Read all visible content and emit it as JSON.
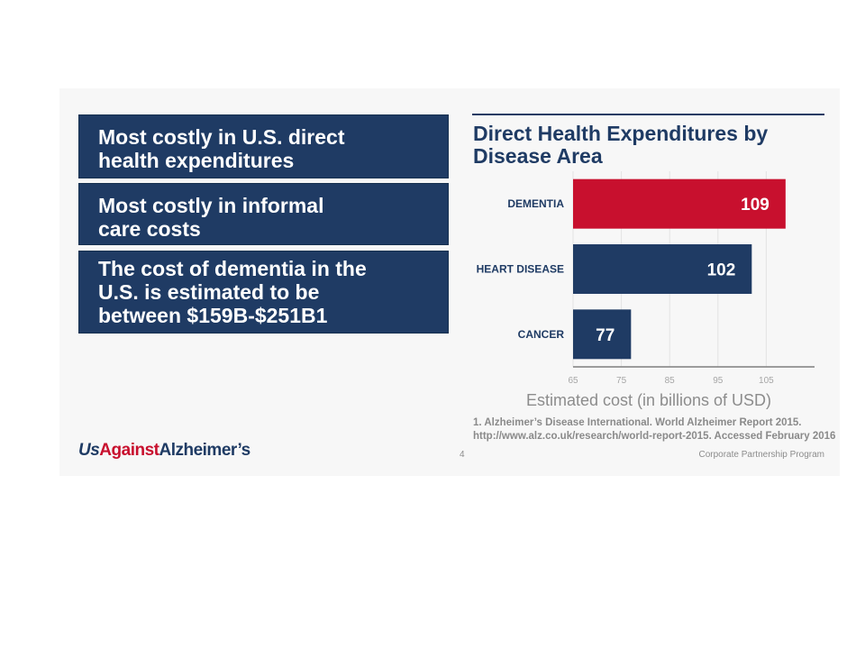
{
  "boxes": [
    {
      "text": "Most costly in U.S. direct\nhealth expenditures"
    },
    {
      "text": "Most costly in informal\ncare costs"
    },
    {
      "text": "The cost of dementia in the\nU.S. is estimated to be\nbetween $159B-$251B1"
    }
  ],
  "chart_data": {
    "type": "bar",
    "orientation": "horizontal",
    "title": "Direct Health Expenditures by\nDisease Area",
    "categories": [
      "DEMENTIA",
      "HEART DISEASE",
      "CANCER"
    ],
    "values": [
      109,
      102,
      77
    ],
    "bar_colors": [
      "#c8102e",
      "#1f3b64",
      "#1f3b64"
    ],
    "xlim": [
      65,
      115
    ],
    "xticks": [
      65,
      75,
      85,
      95,
      105
    ],
    "xlabel": "Estimated cost (in billions of USD)",
    "grid": true
  },
  "footnote": {
    "line1": "1. Alzheimer’s Disease International. World Alzheimer Report 2015.",
    "line2": "http://www.alz.co.uk/research/world-report-2015. Accessed February 2016"
  },
  "footer": {
    "logo_us": "Us",
    "logo_against": "Against",
    "logo_alz": "Alzheimer’s",
    "page_number": "4",
    "program": "Corporate  Partnership Program"
  },
  "colors": {
    "navy": "#1f3b64",
    "red": "#c8102e",
    "background": "#f7f7f7"
  }
}
